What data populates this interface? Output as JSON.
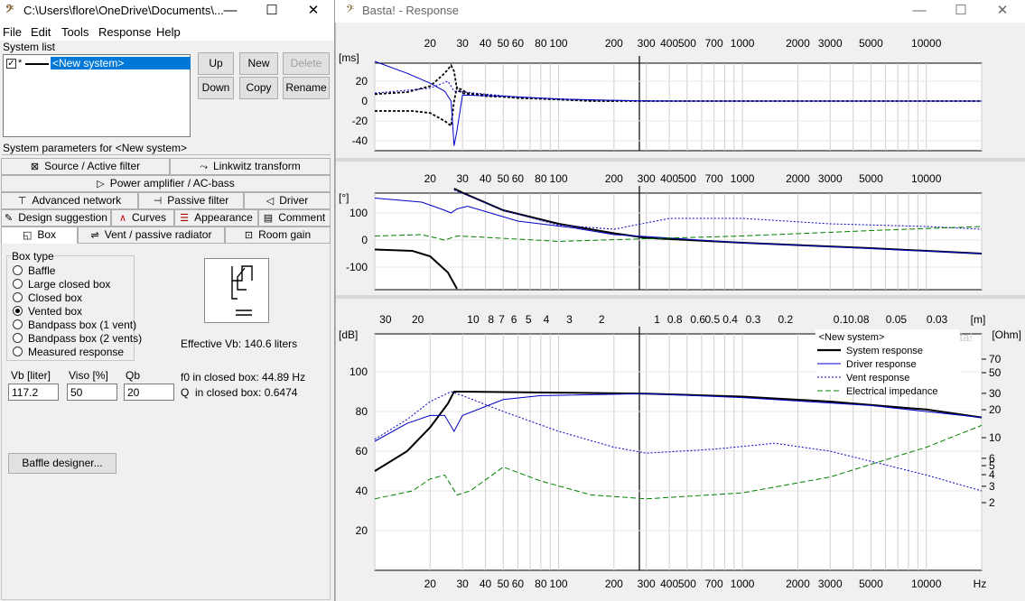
{
  "left_window": {
    "title": "C:\\Users\\flore\\OneDrive\\Documents\\...",
    "controls": {
      "minimize": "—",
      "maximize": "☐",
      "close": "✕"
    },
    "menu": [
      "File",
      "Edit",
      "Tools",
      "Response",
      "Help"
    ],
    "system_list": {
      "label": "System list",
      "items": [
        {
          "checked": true,
          "marker": "*",
          "name": "<New system>",
          "selected": true
        }
      ],
      "buttons": {
        "up": "Up",
        "new": "New",
        "delete": "Delete",
        "down": "Down",
        "copy": "Copy",
        "rename": "Rename"
      }
    },
    "system_params_label": "System parameters for <New system>",
    "tabs": {
      "source": "Source / Active filter",
      "linkwitz": "Linkwitz transform",
      "power_amp": "Power amplifier / AC-bass",
      "advanced_network": "Advanced network",
      "passive_filter": "Passive filter",
      "driver": "Driver",
      "design_suggestion": "Design suggestion",
      "curves": "Curves",
      "appearance": "Appearance",
      "comment": "Comment",
      "box": "Box",
      "vent": "Vent / passive radiator",
      "room_gain": "Room gain"
    },
    "box_type": {
      "label": "Box type",
      "options": [
        "Baffle",
        "Large closed box",
        "Closed box",
        "Vented box",
        "Bandpass box (1 vent)",
        "Bandpass box (2 vents)",
        "Measured response"
      ],
      "selected_index": 3
    },
    "effective_vb": "Effective Vb: 140.6 liters",
    "fields": {
      "vb_label": "Vb [liter]",
      "vb_value": "117.2",
      "viso_label": "Viso [%]",
      "viso_value": "50",
      "qb_label": "Qb",
      "qb_value": "20"
    },
    "f0_text": "f0 in closed box: 44.89 Hz",
    "q_text": "Q  in closed box: 0.6474",
    "baffle_button": "Baffle designer..."
  },
  "right_window": {
    "title": "Basta! - Response",
    "controls": {
      "minimize": "—",
      "maximize": "☐",
      "close": "✕"
    },
    "freq_ticks": [
      "20",
      "30",
      "40",
      "50",
      "60",
      "80",
      "100",
      "200",
      "300",
      "400",
      "500",
      "700",
      "1000",
      "2000",
      "3000",
      "5000",
      "10000"
    ],
    "freq_ticks_bottom": [
      "20",
      "30",
      "40",
      "50",
      "60",
      "80",
      "100",
      "200",
      "300",
      "400",
      "500",
      "700",
      "1000",
      "2000",
      "3000",
      "5000",
      "10000",
      "Hz"
    ],
    "wavelength_ticks": [
      "30",
      "20",
      "10",
      "8",
      "7",
      "6",
      "5",
      "4",
      "3",
      "2",
      "1",
      "0.8",
      "0.6",
      "0.5",
      "0.4",
      "0.3",
      "0.2",
      "0.1",
      "0.08",
      "0.05",
      "0.03",
      "[m]"
    ],
    "panel1": {
      "unit": "[ms]",
      "y_ticks": [
        "20",
        "0",
        "-20",
        "-40"
      ]
    },
    "panel2": {
      "unit": "[°]",
      "y_ticks": [
        "100",
        "0",
        "-100"
      ]
    },
    "panel3": {
      "unit": "[dB]",
      "unit_right": "[Ohm]",
      "y_ticks": [
        "100",
        "80",
        "60",
        "40",
        "20"
      ],
      "y_ticks_right": [
        "70",
        "50",
        "30",
        "20",
        "10",
        "6",
        "5",
        "4",
        "3",
        "2"
      ],
      "watermark": "Basta!",
      "legend_title": "<New system>",
      "legend": [
        "System response",
        "Driver response",
        "Vent response",
        "Electrical impedance"
      ]
    },
    "colors": {
      "system": "#000000",
      "driver": "#0000c8",
      "vent": "#0000c8",
      "impedance": "#008000"
    }
  }
}
